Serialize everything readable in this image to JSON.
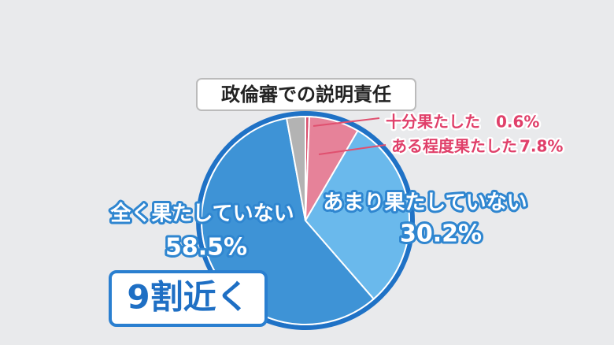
{
  "chart_data": {
    "type": "pie",
    "title": "政倫審での説明責任",
    "categories": [
      "十分果たした",
      "ある程度果たした",
      "あまり果たしていない",
      "全く果たしていない",
      null
    ],
    "values": [
      0.6,
      7.8,
      30.2,
      58.5,
      2.9
    ],
    "value_labels": [
      "0.6%",
      "7.8%",
      "30.2%",
      "58.5%",
      null
    ],
    "colors": [
      "#d9506f",
      "#e68299",
      "#6ab9ec",
      "#3e93d6",
      "#b3b3b3"
    ],
    "annotation": "9割近く"
  }
}
